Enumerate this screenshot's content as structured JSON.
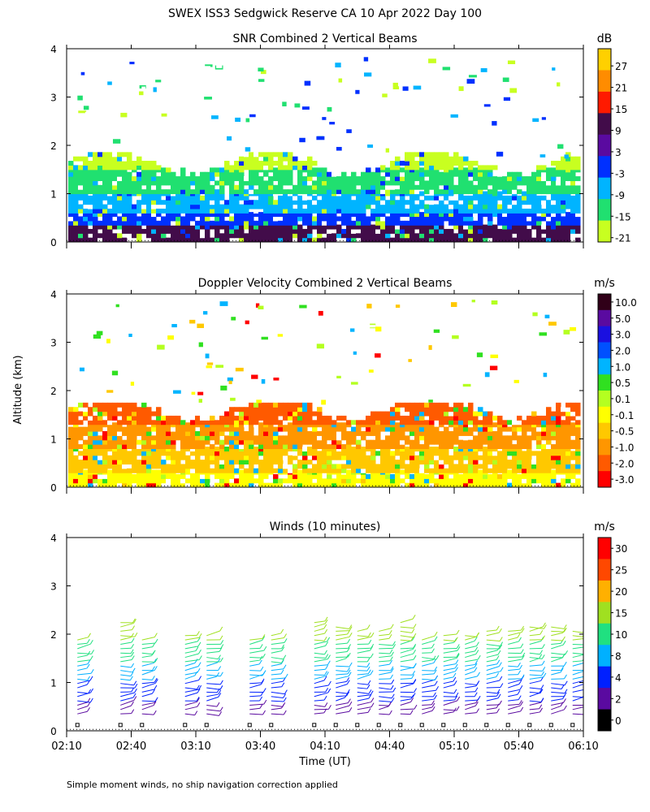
{
  "figure": {
    "title": "SWEX ISS3 Sedgwick Reserve CA  10 Apr 2022 Day 100",
    "ylabel": "Altitude (km)",
    "xlabel": "Time (UT)",
    "footnote": "Simple moment winds, no ship navigation correction applied"
  },
  "chart_data": [
    {
      "type": "heatmap",
      "title": "SNR Combined 2 Vertical Beams",
      "xlabel": "",
      "ylabel": "Altitude (km)",
      "x_range": [
        "02:10",
        "06:10"
      ],
      "ylim": [
        0,
        4
      ],
      "yticks": [
        0,
        1,
        2,
        3,
        4
      ],
      "colorbar": {
        "unit": "dB",
        "labels": [
          "27",
          "21",
          "15",
          "9",
          "3",
          "-3",
          "-9",
          "-15",
          "-21"
        ],
        "colors": [
          "#ffd000",
          "#ff8c00",
          "#ff1a00",
          "#420c4a",
          "#5a0aa0",
          "#0030ff",
          "#00b4ff",
          "#20e070",
          "#c8ff20"
        ]
      },
      "layers": [
        {
          "alt_km": [
            0.0,
            0.35
          ],
          "color": "#420c4a"
        },
        {
          "alt_km": [
            0.35,
            0.6
          ],
          "color": "#0030ff"
        },
        {
          "alt_km": [
            0.6,
            1.0
          ],
          "color": "#00b4ff"
        },
        {
          "alt_km": [
            1.0,
            1.5
          ],
          "color": "#20e070"
        },
        {
          "alt_km": [
            1.5,
            1.8
          ],
          "color": "#c8ff20"
        }
      ]
    },
    {
      "type": "heatmap",
      "title": "Doppler Velocity Combined 2 Vertical Beams",
      "xlabel": "",
      "ylabel": "Altitude (km)",
      "x_range": [
        "02:10",
        "06:10"
      ],
      "ylim": [
        0,
        4
      ],
      "yticks": [
        0,
        1,
        2,
        3,
        4
      ],
      "colorbar": {
        "unit": "m/s",
        "labels": [
          "10.0",
          "5.0",
          "3.0",
          "2.0",
          "1.0",
          "0.5",
          "0.1",
          "-0.1",
          "-0.5",
          "-1.0",
          "-2.0",
          "-3.0"
        ],
        "colors": [
          "#300018",
          "#5a0aa0",
          "#1a10e0",
          "#0050ff",
          "#00b4ff",
          "#30e020",
          "#b4ff20",
          "#ffff00",
          "#ffc800",
          "#ff9600",
          "#ff5a00",
          "#ff0000"
        ]
      },
      "layers": [
        {
          "alt_km": [
            0.0,
            0.3
          ],
          "color": "#ffff00"
        },
        {
          "alt_km": [
            0.3,
            0.8
          ],
          "color": "#ffc800"
        },
        {
          "alt_km": [
            0.8,
            1.3
          ],
          "color": "#ff9600"
        },
        {
          "alt_km": [
            1.3,
            1.75
          ],
          "color": "#ff5a00"
        }
      ]
    },
    {
      "type": "wind-barbs",
      "title": "Winds (10 minutes)",
      "xlabel": "Time (UT)",
      "ylabel": "Altitude (km)",
      "x_range": [
        "02:10",
        "06:10"
      ],
      "ylim": [
        0,
        4
      ],
      "yticks": [
        0,
        1,
        2,
        3,
        4
      ],
      "colorbar": {
        "unit": "m/s",
        "labels": [
          "30",
          "25",
          "20",
          "15",
          "10",
          "8",
          "4",
          "2",
          "0"
        ],
        "colors": [
          "#ff0000",
          "#ff4800",
          "#ffb000",
          "#a0e020",
          "#20e080",
          "#00b0ff",
          "#0020ff",
          "#5a0aa0",
          "#000000"
        ]
      },
      "profile_times": [
        "02:15",
        "02:35",
        "02:45",
        "03:05",
        "03:15",
        "03:35",
        "03:45",
        "04:05",
        "04:15",
        "04:25",
        "04:35",
        "04:45",
        "04:55",
        "05:05",
        "05:15",
        "05:25",
        "05:35",
        "05:45",
        "05:55",
        "06:05"
      ]
    }
  ],
  "xaxis": {
    "ticklabels": [
      "02:10",
      "02:40",
      "03:10",
      "03:40",
      "04:10",
      "04:40",
      "05:10",
      "05:40",
      "06:10"
    ]
  }
}
